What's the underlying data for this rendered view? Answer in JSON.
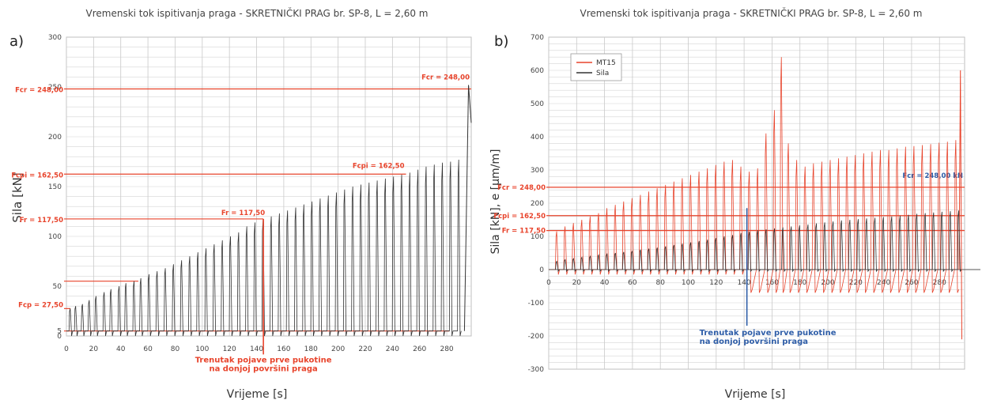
{
  "chart_data": [
    {
      "type": "line",
      "panel_label": "a)",
      "title": "Vremenski tok ispitivanja praga - SKRETNIČKI PRAG br. SP-8, L = 2,60 m",
      "xlabel": "Vrijeme [s]",
      "ylabel": "Sila [kN]",
      "xlim": [
        0,
        298
      ],
      "ylim": [
        0,
        300
      ],
      "x_ticks": [
        0,
        20,
        40,
        60,
        80,
        100,
        120,
        140,
        160,
        180,
        200,
        220,
        240,
        260,
        280
      ],
      "x_tick_labels": [
        "0",
        "20",
        "40",
        "60",
        "80",
        "100",
        "120",
        "140",
        "160",
        "180",
        "200",
        "220",
        "240",
        "260",
        "280"
      ],
      "y_ticks": [
        0,
        5,
        50,
        100,
        150,
        200,
        250,
        300
      ],
      "y_tick_labels": [
        "0",
        "5",
        "50",
        "100",
        "150",
        "200",
        "250",
        "300"
      ],
      "grid": true,
      "series": [
        {
          "name": "Sila",
          "color": "#333333",
          "cycles": [
            {
              "t": 3,
              "peak": 27.5
            },
            {
              "t": 7,
              "peak": 30
            },
            {
              "t": 12,
              "peak": 32
            },
            {
              "t": 17,
              "peak": 36
            },
            {
              "t": 22,
              "peak": 40
            },
            {
              "t": 28,
              "peak": 44
            },
            {
              "t": 33,
              "peak": 47
            },
            {
              "t": 39,
              "peak": 50
            },
            {
              "t": 44,
              "peak": 53
            },
            {
              "t": 50,
              "peak": 55
            },
            {
              "t": 55,
              "peak": 58
            },
            {
              "t": 61,
              "peak": 62
            },
            {
              "t": 67,
              "peak": 65
            },
            {
              "t": 73,
              "peak": 68
            },
            {
              "t": 79,
              "peak": 72
            },
            {
              "t": 85,
              "peak": 76
            },
            {
              "t": 91,
              "peak": 80
            },
            {
              "t": 97,
              "peak": 84
            },
            {
              "t": 103,
              "peak": 88
            },
            {
              "t": 109,
              "peak": 92
            },
            {
              "t": 115,
              "peak": 96
            },
            {
              "t": 121,
              "peak": 100
            },
            {
              "t": 127,
              "peak": 104
            },
            {
              "t": 133,
              "peak": 110
            },
            {
              "t": 139,
              "peak": 114
            },
            {
              "t": 145,
              "peak": 117
            },
            {
              "t": 151,
              "peak": 120
            },
            {
              "t": 157,
              "peak": 123
            },
            {
              "t": 163,
              "peak": 126
            },
            {
              "t": 169,
              "peak": 129
            },
            {
              "t": 175,
              "peak": 132
            },
            {
              "t": 181,
              "peak": 135
            },
            {
              "t": 187,
              "peak": 138
            },
            {
              "t": 193,
              "peak": 141
            },
            {
              "t": 199,
              "peak": 144
            },
            {
              "t": 205,
              "peak": 147
            },
            {
              "t": 211,
              "peak": 150
            },
            {
              "t": 217,
              "peak": 152
            },
            {
              "t": 223,
              "peak": 154
            },
            {
              "t": 229,
              "peak": 156
            },
            {
              "t": 235,
              "peak": 158
            },
            {
              "t": 241,
              "peak": 160
            },
            {
              "t": 247,
              "peak": 162
            },
            {
              "t": 253,
              "peak": 164
            },
            {
              "t": 259,
              "peak": 167
            },
            {
              "t": 265,
              "peak": 170
            },
            {
              "t": 271,
              "peak": 172
            },
            {
              "t": 277,
              "peak": 174
            },
            {
              "t": 283,
              "peak": 175
            },
            {
              "t": 289,
              "peak": 177
            }
          ],
          "final_rise": [
            [
              293,
              5
            ],
            [
              296,
              252
            ],
            [
              298,
              214
            ]
          ]
        }
      ],
      "reference_lines": [
        {
          "y": 248,
          "label": "Fcr = 248,00",
          "x_end": 298
        },
        {
          "y": 162.5,
          "label": "Fcpi = 162,50",
          "x_end": 250
        },
        {
          "y": 117.5,
          "label": "Fr = 117,50",
          "x_end": 145
        },
        {
          "y": 55,
          "label": "",
          "x_end": 53
        },
        {
          "y": 27.5,
          "label": "Fcp = 27,50",
          "x_end": 3
        },
        {
          "y": 5,
          "label": "",
          "x_end": 282
        }
      ],
      "annotations": [
        {
          "x": 145,
          "y1": 117.5,
          "y2": -17,
          "text": [
            "Trenutak pojave prve pukotine",
            "na donjoj površini praga"
          ]
        }
      ],
      "ref_label_top_right": "Fcr = 248,00",
      "ref_label_mid": "Fcpi = 162,50",
      "ref_label_crack": "Fr = 117,50"
    },
    {
      "type": "line",
      "panel_label": "b)",
      "title": "Vremenski tok ispitivanja praga - SKRETNIČKI PRAG br. SP-8, L = 2,60 m",
      "xlabel": "Vrijeme [s]",
      "ylabel": "Sila [kN], e [µm/m]",
      "xlim": [
        0,
        298
      ],
      "ylim": [
        -300,
        700
      ],
      "x_ticks": [
        0,
        20,
        40,
        60,
        80,
        100,
        120,
        140,
        160,
        180,
        200,
        220,
        240,
        260,
        280
      ],
      "x_tick_labels": [
        "0",
        "20",
        "40",
        "60",
        "80",
        "100",
        "120",
        "140",
        "160",
        "180",
        "200",
        "220",
        "240",
        "260",
        "280"
      ],
      "y_ticks": [
        -300,
        -200,
        -100,
        0,
        100,
        200,
        300,
        400,
        500,
        600,
        700
      ],
      "y_tick_labels": [
        "-300",
        "-200",
        "-100",
        "0",
        "100",
        "200",
        "300",
        "400",
        "500",
        "600",
        "700"
      ],
      "grid": true,
      "legend": {
        "position": "top-left",
        "entries": [
          {
            "name": "MT15",
            "color": "#e8442c"
          },
          {
            "name": "Sila",
            "color": "#333333"
          }
        ]
      },
      "series": [
        {
          "name": "MT15",
          "color": "#e8442c",
          "cycles": [
            {
              "t": 6,
              "peak": 115
            },
            {
              "t": 12,
              "peak": 130
            },
            {
              "t": 18,
              "peak": 140
            },
            {
              "t": 24,
              "peak": 150
            },
            {
              "t": 30,
              "peak": 160
            },
            {
              "t": 36,
              "peak": 170
            },
            {
              "t": 42,
              "peak": 185
            },
            {
              "t": 48,
              "peak": 195
            },
            {
              "t": 54,
              "peak": 205
            },
            {
              "t": 60,
              "peak": 215
            },
            {
              "t": 66,
              "peak": 225
            },
            {
              "t": 72,
              "peak": 235
            },
            {
              "t": 78,
              "peak": 245
            },
            {
              "t": 84,
              "peak": 255
            },
            {
              "t": 90,
              "peak": 265
            },
            {
              "t": 96,
              "peak": 275
            },
            {
              "t": 102,
              "peak": 285
            },
            {
              "t": 108,
              "peak": 295
            },
            {
              "t": 114,
              "peak": 305
            },
            {
              "t": 120,
              "peak": 315
            },
            {
              "t": 126,
              "peak": 325
            },
            {
              "t": 132,
              "peak": 330
            },
            {
              "t": 138,
              "peak": 310
            },
            {
              "t": 144,
              "peak": 295
            },
            {
              "t": 150,
              "peak": 305
            },
            {
              "t": 156,
              "peak": 410
            },
            {
              "t": 162,
              "peak": 480
            },
            {
              "t": 167,
              "peak": 640
            },
            {
              "t": 172,
              "peak": 380
            },
            {
              "t": 178,
              "peak": 330
            },
            {
              "t": 184,
              "peak": 310
            },
            {
              "t": 190,
              "peak": 320
            },
            {
              "t": 196,
              "peak": 325
            },
            {
              "t": 202,
              "peak": 330
            },
            {
              "t": 208,
              "peak": 335
            },
            {
              "t": 214,
              "peak": 340
            },
            {
              "t": 220,
              "peak": 345
            },
            {
              "t": 226,
              "peak": 350
            },
            {
              "t": 232,
              "peak": 355
            },
            {
              "t": 238,
              "peak": 360
            },
            {
              "t": 244,
              "peak": 360
            },
            {
              "t": 250,
              "peak": 365
            },
            {
              "t": 256,
              "peak": 370
            },
            {
              "t": 262,
              "peak": 372
            },
            {
              "t": 268,
              "peak": 375
            },
            {
              "t": 274,
              "peak": 378
            },
            {
              "t": 280,
              "peak": 382
            },
            {
              "t": 286,
              "peak": 385
            },
            {
              "t": 292,
              "peak": 390
            }
          ],
          "final_spike": [
            [
              295,
              600
            ],
            [
              296,
              -210
            ]
          ]
        },
        {
          "name": "Sila",
          "color": "#333333",
          "cycles": [
            {
              "t": 6,
              "peak": 25
            },
            {
              "t": 12,
              "peak": 30
            },
            {
              "t": 18,
              "peak": 33
            },
            {
              "t": 24,
              "peak": 37
            },
            {
              "t": 30,
              "peak": 40
            },
            {
              "t": 36,
              "peak": 44
            },
            {
              "t": 42,
              "peak": 47
            },
            {
              "t": 48,
              "peak": 50
            },
            {
              "t": 54,
              "peak": 53
            },
            {
              "t": 60,
              "peak": 56
            },
            {
              "t": 66,
              "peak": 60
            },
            {
              "t": 72,
              "peak": 63
            },
            {
              "t": 78,
              "peak": 66
            },
            {
              "t": 84,
              "peak": 70
            },
            {
              "t": 90,
              "peak": 74
            },
            {
              "t": 96,
              "peak": 78
            },
            {
              "t": 102,
              "peak": 82
            },
            {
              "t": 108,
              "peak": 86
            },
            {
              "t": 114,
              "peak": 90
            },
            {
              "t": 120,
              "peak": 95
            },
            {
              "t": 126,
              "peak": 100
            },
            {
              "t": 132,
              "peak": 104
            },
            {
              "t": 138,
              "peak": 110
            },
            {
              "t": 144,
              "peak": 114
            },
            {
              "t": 150,
              "peak": 118
            },
            {
              "t": 156,
              "peak": 121
            },
            {
              "t": 162,
              "peak": 124
            },
            {
              "t": 168,
              "peak": 127
            },
            {
              "t": 174,
              "peak": 130
            },
            {
              "t": 180,
              "peak": 133
            },
            {
              "t": 186,
              "peak": 136
            },
            {
              "t": 192,
              "peak": 139
            },
            {
              "t": 198,
              "peak": 142
            },
            {
              "t": 204,
              "peak": 145
            },
            {
              "t": 210,
              "peak": 148
            },
            {
              "t": 216,
              "peak": 150
            },
            {
              "t": 222,
              "peak": 152
            },
            {
              "t": 228,
              "peak": 154
            },
            {
              "t": 234,
              "peak": 156
            },
            {
              "t": 240,
              "peak": 158
            },
            {
              "t": 246,
              "peak": 160
            },
            {
              "t": 252,
              "peak": 162
            },
            {
              "t": 258,
              "peak": 165
            },
            {
              "t": 264,
              "peak": 168
            },
            {
              "t": 270,
              "peak": 170
            },
            {
              "t": 276,
              "peak": 172
            },
            {
              "t": 282,
              "peak": 174
            },
            {
              "t": 288,
              "peak": 176
            },
            {
              "t": 294,
              "peak": 178
            }
          ]
        }
      ],
      "reference_lines": [
        {
          "y": 248,
          "label": "Fcr = 248,00",
          "x_end": 298
        },
        {
          "y": 162.5,
          "label": "Fcpi = 162,50",
          "x_end": 298
        },
        {
          "y": 117.5,
          "label": "Fr = 117,50",
          "x_end": 298
        }
      ],
      "annotations": [
        {
          "x": 142,
          "y1": 185,
          "y2": -150,
          "text": [
            "Trenutak pojave prve pukotine",
            "na donjoj površini praga"
          ]
        }
      ],
      "ref_label_right": "Fcr = 248,00 kN"
    }
  ]
}
